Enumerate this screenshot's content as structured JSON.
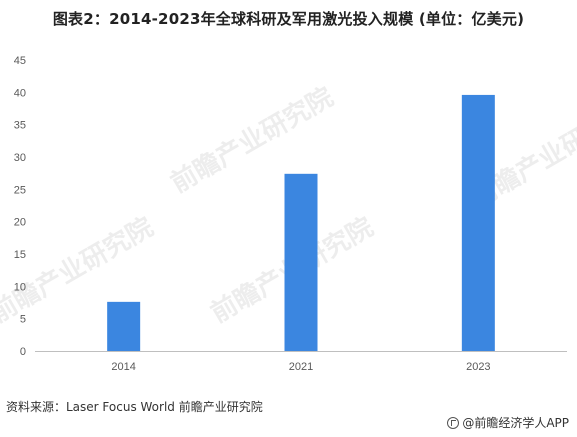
{
  "title": "图表2：2014-2023年全球科研及军用激光投入规模 (单位：亿美元)",
  "source": "资料来源：Laser Focus World 前瞻产业研究院",
  "logo_text": "@前瞻经济学人APP",
  "watermark": "前瞻产业研究院",
  "colors": {
    "bar": "#3B86E0",
    "axis": "#BFBFBF",
    "tick_text": "#595959"
  },
  "chart_data": {
    "type": "bar",
    "title": "图表2：2014-2023年全球科研及军用激光投入规模 (单位：亿美元)",
    "categories": [
      "2014",
      "2021",
      "2023"
    ],
    "values": [
      7.6,
      27.4,
      39.6
    ],
    "xlabel": "",
    "ylabel": "",
    "ylim": [
      0,
      45
    ],
    "yticks": [
      0,
      5,
      10,
      15,
      20,
      25,
      30,
      35,
      40,
      45
    ],
    "grid": false,
    "legend": "none"
  }
}
